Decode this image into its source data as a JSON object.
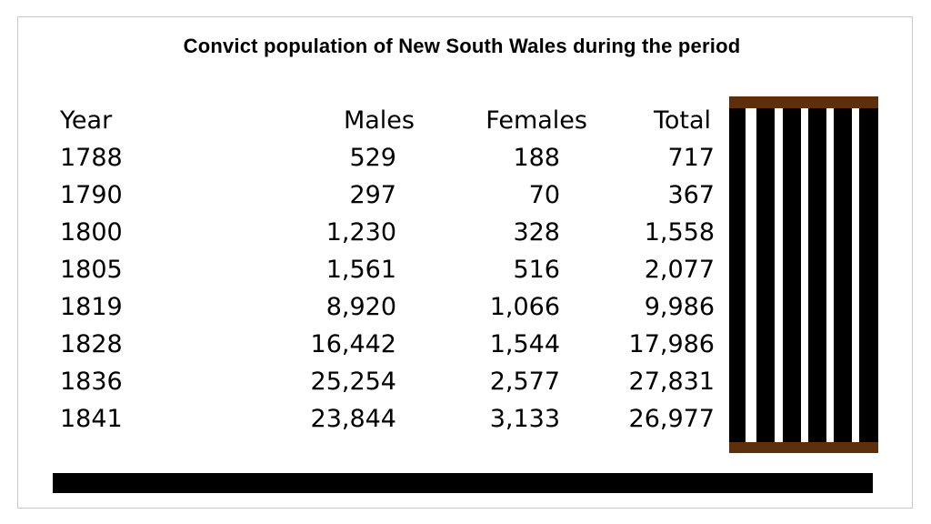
{
  "title": "Convict population of New South Wales during the period",
  "table": {
    "headers": [
      "Year",
      "Males",
      "Females",
      "Total"
    ],
    "rows": [
      [
        "1788",
        "529",
        "188",
        "717"
      ],
      [
        "1790",
        "297",
        "70",
        "367"
      ],
      [
        "1800",
        "1,230",
        "328",
        "1,558"
      ],
      [
        "1805",
        "1,561",
        "516",
        "2,077"
      ],
      [
        "1819",
        "8,920",
        "1,066",
        "9,986"
      ],
      [
        "1828",
        "16,442",
        "1,544",
        "17,986"
      ],
      [
        "1836",
        "25,254",
        "2,577",
        "27,831"
      ],
      [
        "1841",
        "23,844",
        "3,133",
        "26,977"
      ]
    ]
  },
  "colors": {
    "bar_wood": "#5e2f0b",
    "bar_black": "#000000",
    "bottom_bar": "#000000"
  },
  "icons": {
    "prison_bars": "prison-bars-icon"
  }
}
